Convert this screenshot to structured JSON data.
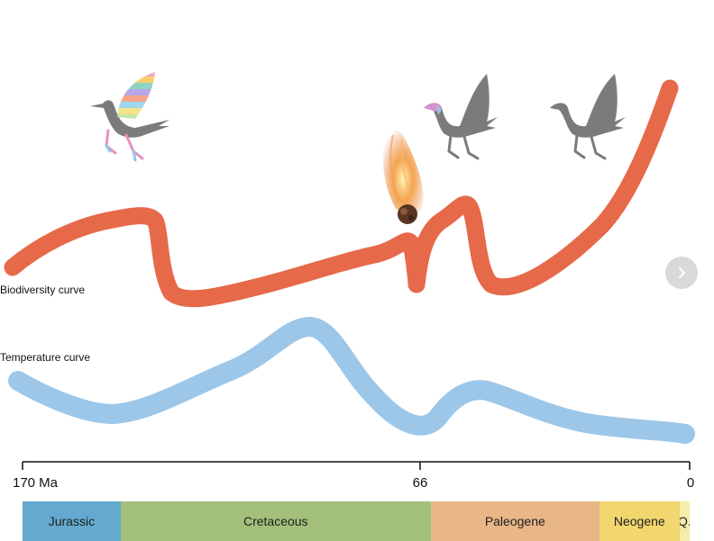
{
  "labels": {
    "biodiversity": "Biodiversity curve",
    "temperature": "Temperature curve"
  },
  "timeline": {
    "ticks": [
      {
        "label": "170 Ma",
        "ma": 170
      },
      {
        "label": "66",
        "ma": 66
      },
      {
        "label": "0",
        "ma": 0
      }
    ]
  },
  "periods": [
    {
      "name": "Jurassic",
      "start_ma": 170,
      "end_ma": 145,
      "color": "#64a9cf"
    },
    {
      "name": "Cretaceous",
      "start_ma": 145,
      "end_ma": 66,
      "color": "#a3c07b"
    },
    {
      "name": "Paleogene",
      "start_ma": 66,
      "end_ma": 23,
      "color": "#e8b687"
    },
    {
      "name": "Neogene",
      "start_ma": 23,
      "end_ma": 2.6,
      "color": "#f2d66e"
    },
    {
      "name": "Q.",
      "start_ma": 2.6,
      "end_ma": 0,
      "color": "#f5ecaa"
    }
  ],
  "colors": {
    "biodiversity": "#e6694a",
    "temperature": "#9cc7e9",
    "bird": "#7b7b7b",
    "meteor_fire": "#e8732a"
  },
  "icons": {
    "next": "chevron-right-icon",
    "meteor": "meteor-icon",
    "birds": [
      "rainbow-bird-icon",
      "partly-colored-bird-icon",
      "gray-bird-icon"
    ]
  }
}
